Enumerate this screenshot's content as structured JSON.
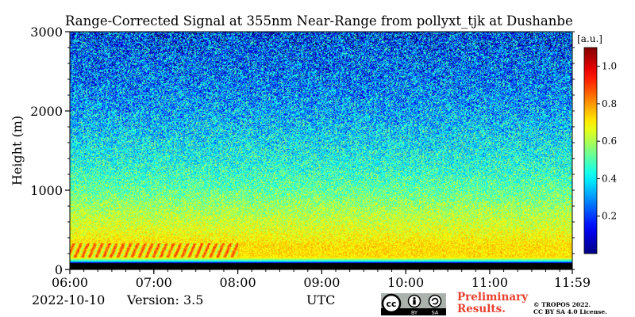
{
  "chart_data": {
    "type": "heatmap",
    "title": "Range-Corrected Signal at 355nm Near-Range from pollyxt_tjk at Dushanbe",
    "xlabel": "UTC",
    "ylabel": "Height (m)",
    "x_ticks": [
      "06:00",
      "07:00",
      "08:00",
      "09:00",
      "10:00",
      "11:00",
      "11:59"
    ],
    "x_range": [
      "06:00",
      "11:59"
    ],
    "y_ticks": [
      0,
      1000,
      2000,
      3000
    ],
    "ylim": [
      0,
      3000
    ],
    "colorbar": {
      "label": "[a.u.]",
      "ticks": [
        0.2,
        0.4,
        0.6,
        0.8,
        1.0
      ],
      "tick_labels": [
        "0.2",
        "0.4",
        "0.6",
        "0.8",
        "1.0"
      ],
      "range": [
        0,
        1.1
      ],
      "colormap": "jet"
    },
    "profile": [
      {
        "height": 0,
        "value": 0.0
      },
      {
        "height": 80,
        "value": 0.0
      },
      {
        "height": 100,
        "value": 0.4
      },
      {
        "height": 150,
        "value": 0.72
      },
      {
        "height": 300,
        "value": 0.72
      },
      {
        "height": 500,
        "value": 0.66
      },
      {
        "height": 800,
        "value": 0.58
      },
      {
        "height": 1000,
        "value": 0.52
      },
      {
        "height": 1300,
        "value": 0.45
      },
      {
        "height": 1600,
        "value": 0.4
      },
      {
        "height": 2000,
        "value": 0.33
      },
      {
        "height": 2400,
        "value": 0.27
      },
      {
        "height": 2800,
        "value": 0.23
      },
      {
        "height": 3000,
        "value": 0.2
      }
    ],
    "aerosol_layer": {
      "height_range": [
        150,
        330
      ],
      "time_range": [
        "06:00",
        "08:00"
      ],
      "value": 0.88
    }
  },
  "footer": {
    "date": "2022-10-10",
    "version": "Version: 3.5",
    "preliminary": [
      "Preliminary",
      "Results."
    ],
    "copyright": [
      "© TROPOS 2022.",
      "CC BY SA 4.0 License."
    ]
  },
  "license_icon": "cc-by-sa-icon"
}
